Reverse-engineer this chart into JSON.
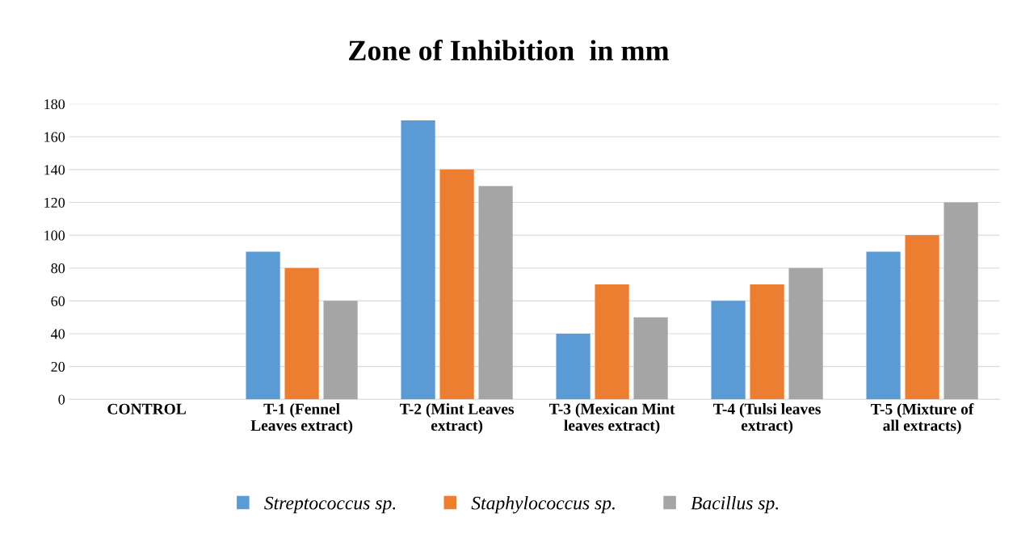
{
  "chart_data": {
    "type": "bar",
    "title": "Zone of Inhibition  in mm",
    "categories": [
      "CONTROL",
      "T-1 (Fennel Leaves extract)",
      "T-2 (Mint Leaves extract)",
      "T-3 (Mexican Mint leaves extract)",
      "T-4 (Tulsi leaves extract)",
      "T-5 (Mixture of all extracts)"
    ],
    "series": [
      {
        "name": "Streptococcus sp.",
        "color": "#5b9bd5",
        "values": [
          0,
          90,
          170,
          40,
          60,
          90
        ]
      },
      {
        "name": "Staphylococcus sp.",
        "color": "#ed7d31",
        "values": [
          0,
          80,
          140,
          70,
          70,
          100
        ]
      },
      {
        "name": "Bacillus sp.",
        "color": "#a5a5a5",
        "values": [
          0,
          60,
          130,
          50,
          80,
          120
        ]
      }
    ],
    "ylim": [
      0,
      180
    ],
    "yticks": [
      0,
      20,
      40,
      60,
      80,
      100,
      120,
      140,
      160,
      180
    ],
    "grid": "y",
    "legend": "bottom"
  }
}
